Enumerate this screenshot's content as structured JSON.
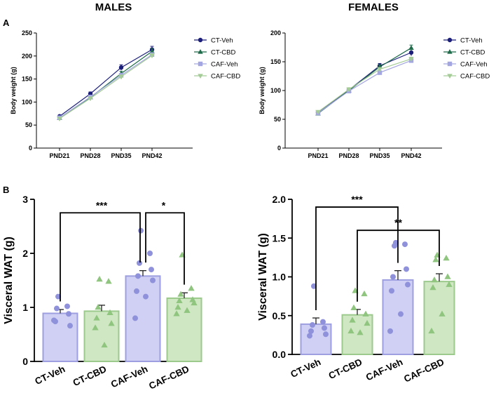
{
  "headings": {
    "males": "MALES",
    "females": "FEMALES"
  },
  "panels": {
    "a": "A",
    "b": "B"
  },
  "colors": {
    "ct_veh": "#1c1f7a",
    "ct_cbd": "#1f6b4a",
    "caf_veh": "#a3a6e0",
    "caf_cbd": "#a5cc96",
    "bar_veh_fill": "#cfd0f3",
    "bar_veh_edge": "#9d9fe0",
    "bar_veh_point": "#8f92da",
    "bar_cbd_fill": "#cfe7c3",
    "bar_cbd_edge": "#9cc98c",
    "bar_cbd_point": "#8fc57f"
  },
  "chart_data": [
    {
      "id": "males_body_weight",
      "type": "line",
      "ylabel": "Body weight (g)",
      "ylim": [
        0,
        250
      ],
      "yticks": [
        "0",
        "50",
        "100",
        "150",
        "200",
        "250"
      ],
      "categories": [
        "PND21",
        "PND28",
        "PND35",
        "PND42"
      ],
      "series": [
        {
          "name": "CT-Veh",
          "values": [
            69,
            118,
            175,
            214
          ],
          "errors": [
            2,
            4,
            6,
            7
          ],
          "marker": "circle"
        },
        {
          "name": "CT-CBD",
          "values": [
            65,
            110,
            162,
            210
          ],
          "errors": [
            2,
            3,
            5,
            6
          ],
          "marker": "triangle"
        },
        {
          "name": "CAF-Veh",
          "values": [
            66,
            111,
            158,
            203
          ],
          "errors": [
            2,
            3,
            4,
            4
          ],
          "marker": "square"
        },
        {
          "name": "CAF-CBD",
          "values": [
            64,
            108,
            155,
            201
          ],
          "errors": [
            2,
            3,
            4,
            4
          ],
          "marker": "triangle-down"
        }
      ]
    },
    {
      "id": "females_body_weight",
      "type": "line",
      "ylabel": "Body weight (g)",
      "ylim": [
        0,
        200
      ],
      "yticks": [
        "0",
        "50",
        "100",
        "150",
        "200"
      ],
      "categories": [
        "PND21",
        "PND28",
        "PND35",
        "PND42"
      ],
      "series": [
        {
          "name": "CT-Veh",
          "values": [
            62,
            101,
            143,
            166
          ],
          "errors": [
            2,
            3,
            4,
            6
          ],
          "marker": "circle"
        },
        {
          "name": "CT-CBD",
          "values": [
            60,
            100,
            141,
            174
          ],
          "errors": [
            2,
            3,
            4,
            5
          ],
          "marker": "triangle"
        },
        {
          "name": "CAF-Veh",
          "values": [
            61,
            99,
            131,
            152
          ],
          "errors": [
            2,
            3,
            3,
            3
          ],
          "marker": "square"
        },
        {
          "name": "CAF-CBD",
          "values": [
            63,
            102,
            137,
            155
          ],
          "errors": [
            2,
            3,
            3,
            3
          ],
          "marker": "triangle-down"
        }
      ]
    },
    {
      "id": "males_visceral_wat",
      "type": "bar",
      "ylabel": "Visceral WAT (g)",
      "ylim": [
        0,
        3
      ],
      "yticks": [
        "0",
        "1",
        "2",
        "3"
      ],
      "categories": [
        "CT-Veh",
        "CT-CBD",
        "CAF-Veh",
        "CAF-CBD"
      ],
      "values": [
        0.89,
        0.93,
        1.58,
        1.17
      ],
      "errors": [
        0.07,
        0.11,
        0.1,
        0.1
      ],
      "groups": [
        "veh",
        "cbd",
        "veh",
        "cbd"
      ],
      "markers": [
        "circle",
        "triangle",
        "circle",
        "triangle"
      ],
      "points": [
        [
          1.2,
          1.02,
          0.98,
          0.88,
          0.74,
          0.66,
          0.76
        ],
        [
          1.52,
          1.48,
          1.0,
          0.9,
          0.8,
          0.7,
          0.62,
          0.3
        ],
        [
          2.42,
          2.0,
          1.82,
          1.7,
          1.58,
          1.5,
          1.3,
          1.2,
          0.8
        ],
        [
          1.97,
          1.35,
          1.24,
          1.14,
          1.12,
          1.08,
          1.0,
          0.94,
          0.88
        ]
      ],
      "significance": [
        {
          "from": 0,
          "to": 2,
          "label": "***",
          "y": 2.75
        },
        {
          "from": 2,
          "to": 3,
          "label": "*",
          "y": 2.75
        }
      ]
    },
    {
      "id": "females_visceral_wat",
      "type": "bar",
      "ylabel": "Visceral WAT (g)",
      "ylim": [
        0,
        2.0
      ],
      "yticks": [
        "0.0",
        "0.5",
        "1.0",
        "1.5",
        "2.0"
      ],
      "categories": [
        "CT-Veh",
        "CT-CBD",
        "CAF-Veh",
        "CAF-CBD"
      ],
      "values": [
        0.39,
        0.51,
        0.96,
        0.94
      ],
      "errors": [
        0.08,
        0.07,
        0.12,
        0.1
      ],
      "groups": [
        "veh",
        "cbd",
        "veh",
        "cbd"
      ],
      "markers": [
        "circle",
        "triangle",
        "circle",
        "triangle"
      ],
      "points": [
        [
          0.88,
          0.42,
          0.38,
          0.34,
          0.3,
          0.26,
          0.24
        ],
        [
          0.82,
          0.78,
          0.6,
          0.52,
          0.44,
          0.4,
          0.3,
          0.28
        ],
        [
          1.44,
          1.42,
          1.4,
          1.1,
          1.0,
          0.9,
          0.82,
          0.52,
          0.3
        ],
        [
          1.28,
          1.24,
          1.22,
          1.0,
          0.96,
          0.9,
          0.86,
          0.52,
          0.3
        ]
      ],
      "significance": [
        {
          "from": 0,
          "to": 2,
          "label": "***",
          "y": 1.9
        },
        {
          "from": 1,
          "to": 3,
          "label": "**",
          "y": 1.6
        }
      ]
    }
  ]
}
